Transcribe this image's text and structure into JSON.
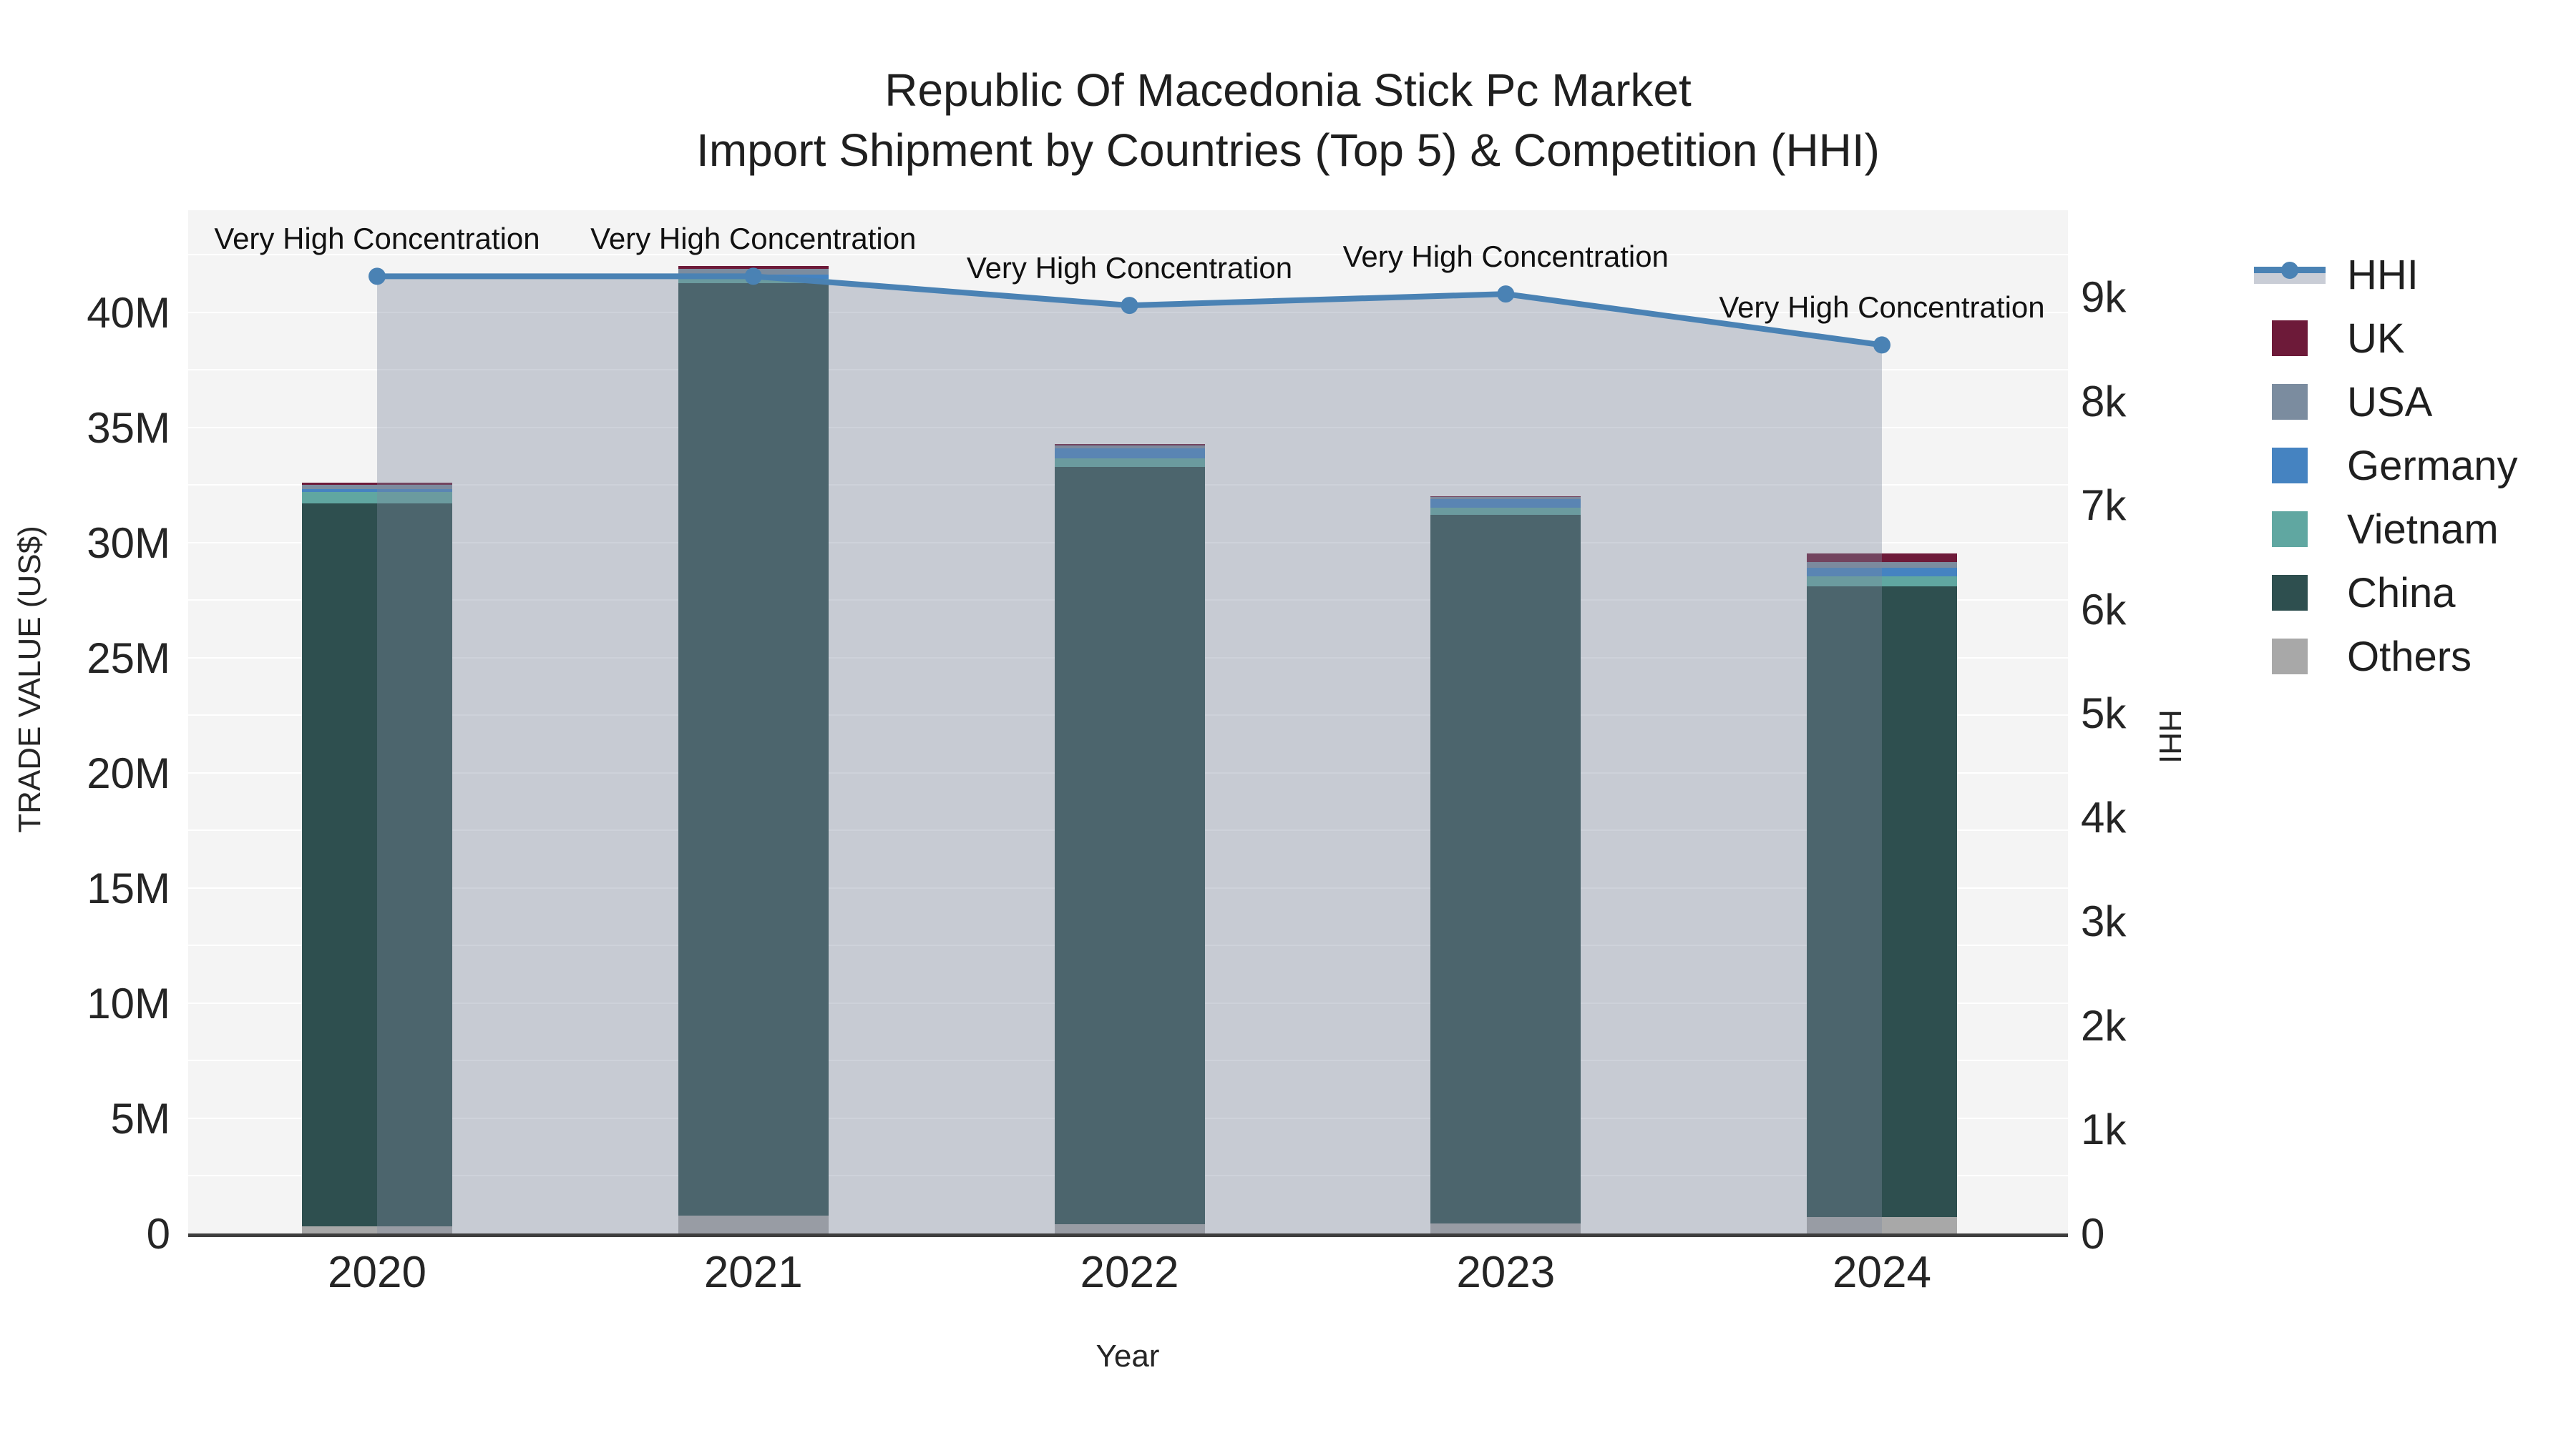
{
  "chart_data": {
    "type": "bar+line",
    "title": "Republic Of Macedonia Stick Pc Market",
    "subtitle": "Import Shipment by Countries (Top 5) & Competition (HHI)",
    "xlabel": "Year",
    "ylabel_left": "TRADE VALUE (US$)",
    "ylabel_right": "HHI",
    "categories": [
      "2020",
      "2021",
      "2022",
      "2023",
      "2024"
    ],
    "stack_order_bottom_to_top": [
      "Others",
      "China",
      "Vietnam",
      "Germany",
      "USA",
      "UK"
    ],
    "bar_series": [
      {
        "name": "UK",
        "color": "#6d1a39",
        "values_musd": [
          0.1,
          0.12,
          0.07,
          0.05,
          0.37
        ]
      },
      {
        "name": "USA",
        "color": "#7b8c9f",
        "values_musd": [
          0.2,
          0.25,
          0.12,
          0.1,
          0.25
        ]
      },
      {
        "name": "Germany",
        "color": "#4583c1",
        "values_musd": [
          0.12,
          0.19,
          0.43,
          0.37,
          0.37
        ]
      },
      {
        "name": "Vietnam",
        "color": "#60a7a1",
        "values_musd": [
          0.5,
          0.19,
          0.37,
          0.31,
          0.43
        ]
      },
      {
        "name": "China",
        "color": "#2e4f4f",
        "values_musd": [
          31.4,
          40.5,
          32.9,
          30.75,
          27.4
        ]
      },
      {
        "name": "Others",
        "color": "#a8a8a8",
        "values_musd": [
          0.3,
          0.77,
          0.4,
          0.45,
          0.7
        ]
      }
    ],
    "totals_musd": [
      32.62,
      42.02,
      34.29,
      32.03,
      29.52
    ],
    "line_series": {
      "name": "HHI",
      "color": "#4a82b4",
      "fill_color": "rgba(125,136,158,0.38)",
      "values": [
        9200,
        9200,
        8920,
        9030,
        8540
      ]
    },
    "annotations": [
      {
        "year": "2020",
        "text": "Very High Concentration"
      },
      {
        "year": "2021",
        "text": "Very High Concentration"
      },
      {
        "year": "2022",
        "text": "Very High Concentration"
      },
      {
        "year": "2023",
        "text": "Very High Concentration"
      },
      {
        "year": "2024",
        "text": "Very High Concentration"
      }
    ],
    "left_axis": {
      "tick_labels": [
        "0",
        "5M",
        "10M",
        "15M",
        "20M",
        "25M",
        "30M",
        "35M",
        "40M"
      ],
      "tick_values_musd": [
        0,
        5,
        10,
        15,
        20,
        25,
        30,
        35,
        40
      ],
      "max_musd": 44.44,
      "gridline_step_musd": 2.5,
      "grid": true
    },
    "right_axis": {
      "tick_labels": [
        "0",
        "1k",
        "2k",
        "3k",
        "4k",
        "5k",
        "6k",
        "7k",
        "8k",
        "9k"
      ],
      "tick_values": [
        0,
        1000,
        2000,
        3000,
        4000,
        5000,
        6000,
        7000,
        8000,
        9000
      ],
      "max": 9835,
      "grid": false
    },
    "legend": {
      "position": "right",
      "items": [
        {
          "label": "HHI",
          "type": "line",
          "color": "#4a82b4"
        },
        {
          "label": "UK",
          "type": "swatch",
          "color": "#6d1a39"
        },
        {
          "label": "USA",
          "type": "swatch",
          "color": "#7b8c9f"
        },
        {
          "label": "Germany",
          "type": "swatch",
          "color": "#4583c1"
        },
        {
          "label": "Vietnam",
          "type": "swatch",
          "color": "#60a7a1"
        },
        {
          "label": "China",
          "type": "swatch",
          "color": "#2e4f4f"
        },
        {
          "label": "Others",
          "type": "swatch",
          "color": "#a8a8a8"
        }
      ]
    }
  }
}
